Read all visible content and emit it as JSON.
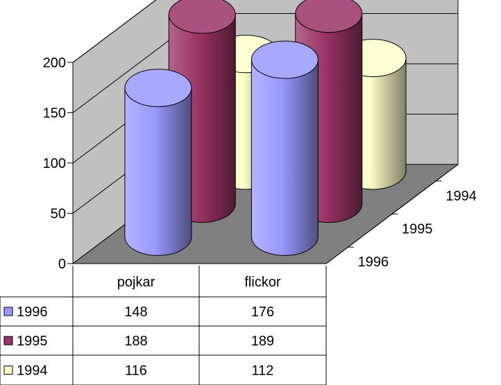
{
  "chart_data": {
    "type": "bar",
    "style": "3d-cylinder",
    "categories": [
      "pojkar",
      "flickor"
    ],
    "series": [
      {
        "name": "1996",
        "values": [
          148,
          176
        ],
        "color": "#9999ff"
      },
      {
        "name": "1995",
        "values": [
          188,
          189
        ],
        "color": "#993366"
      },
      {
        "name": "1994",
        "values": [
          116,
          112
        ],
        "color": "#ffffcc"
      }
    ],
    "ylim": [
      0,
      200
    ],
    "yticks": [
      "0",
      "50",
      "100",
      "150",
      "200"
    ],
    "depth_labels": [
      "1996",
      "1995",
      "1994"
    ],
    "title": "",
    "xlabel": "",
    "ylabel": "",
    "grid": true,
    "data_table": true,
    "colors": {
      "back_wall": "#c0c0c0",
      "side_wall": "#c0c0c0",
      "floor": "#808080"
    }
  }
}
